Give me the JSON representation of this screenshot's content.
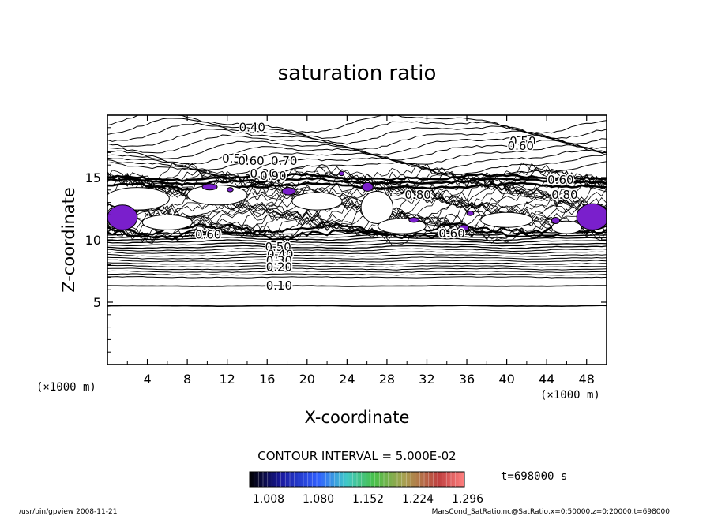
{
  "chart_data": {
    "type": "contour",
    "title": "saturation ratio",
    "xlabel": "X-coordinate",
    "ylabel": "Z-coordinate",
    "x_unit": "(×1000 m)",
    "y_unit": "(×1000 m)",
    "xlim": [
      0,
      50
    ],
    "ylim": [
      0,
      20
    ],
    "x_ticks": [
      4,
      8,
      12,
      16,
      20,
      24,
      28,
      32,
      36,
      40,
      44,
      48
    ],
    "y_ticks": [
      5,
      10,
      15
    ],
    "contour_interval_label": "CONTOUR INTERVAL = 5.000E-02",
    "contour_labels": [
      {
        "text": "0.40",
        "x": 14.5,
        "y": 18.7
      },
      {
        "text": "0.50",
        "x": 41.6,
        "y": 17.6
      },
      {
        "text": "0.60",
        "x": 41.4,
        "y": 17.2
      },
      {
        "text": "0.50",
        "x": 12.8,
        "y": 16.2
      },
      {
        "text": "0.60",
        "x": 14.4,
        "y": 16.0
      },
      {
        "text": "0.70",
        "x": 17.7,
        "y": 16.0
      },
      {
        "text": "0.80",
        "x": 15.6,
        "y": 15.0
      },
      {
        "text": "0.90",
        "x": 16.6,
        "y": 14.8
      },
      {
        "text": "0.80",
        "x": 31.1,
        "y": 13.3
      },
      {
        "text": "0.60",
        "x": 45.4,
        "y": 14.5
      },
      {
        "text": "0.80",
        "x": 45.8,
        "y": 13.3
      },
      {
        "text": "0.60",
        "x": 10.1,
        "y": 10.1
      },
      {
        "text": "0.60",
        "x": 34.5,
        "y": 10.2
      },
      {
        "text": "0.50",
        "x": 17.1,
        "y": 9.1
      },
      {
        "text": "0.40",
        "x": 17.3,
        "y": 8.5
      },
      {
        "text": "0.30",
        "x": 17.2,
        "y": 8.0
      },
      {
        "text": "0.20",
        "x": 17.2,
        "y": 7.5
      },
      {
        "text": "0.10",
        "x": 17.2,
        "y": 6.0
      }
    ],
    "colorbar": {
      "tick_labels": [
        "1.008",
        "1.080",
        "1.152",
        "1.224",
        "1.296"
      ],
      "colormap": [
        "#000000",
        "#1a1aa0",
        "#3060ff",
        "#40c8c8",
        "#48c048",
        "#a8a050",
        "#c04040",
        "#ff8080"
      ]
    },
    "supersaturated_color": "#7a1fcc",
    "time_label": "t=698000 s"
  },
  "footer": {
    "program": "/usr/bin/gpview   2008-11-21",
    "source": "MarsCond_SatRatio.nc@SatRatio,x=0:50000,z=0:20000,t=698000"
  }
}
